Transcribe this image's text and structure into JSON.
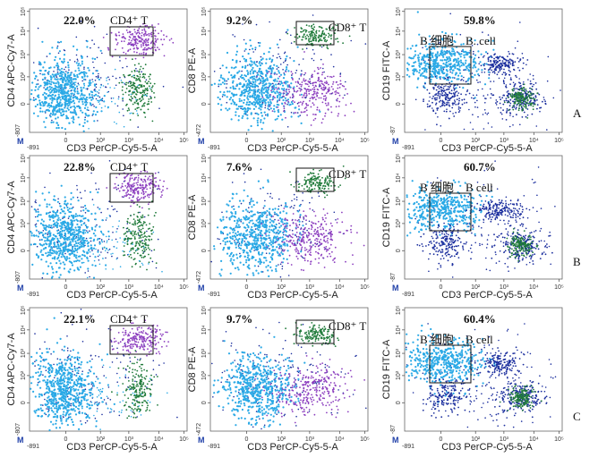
{
  "rows": [
    {
      "label": "A",
      "panels": [
        {
          "kind": "cd4",
          "x_axis": "CD3 PerCP-Cy5-5-A",
          "y_axis": "CD4 APC-Cy7-A",
          "x_min": "-891",
          "y_min": "-807",
          "percent": "22.0%",
          "gate": "CD4⁺ T",
          "gate_alt": ""
        },
        {
          "kind": "cd8",
          "x_axis": "CD3 PerCP-Cy5-5-A",
          "y_axis": "CD8 PE-A",
          "x_min": "-891",
          "y_min": "-472",
          "percent": "9.2%",
          "gate": "CD8⁺ T",
          "gate_alt": ""
        },
        {
          "kind": "cd19",
          "x_axis": "CD3 PerCP-Cy5-5-A",
          "y_axis": "CD19 FITC-A",
          "x_min": "-891",
          "y_min": "-87",
          "percent": "59.8%",
          "gate": "B 细胞",
          "gate_alt": "B. cell"
        }
      ]
    },
    {
      "label": "B",
      "panels": [
        {
          "kind": "cd4",
          "x_axis": "CD3 PerCP-Cy5-5-A",
          "y_axis": "CD4 APC-Cy7-A",
          "x_min": "-891",
          "y_min": "-807",
          "percent": "22.8%",
          "gate": "CD4⁺ T",
          "gate_alt": ""
        },
        {
          "kind": "cd8",
          "x_axis": "CD3 PerCP-Cy5-5-A",
          "y_axis": "CD8 PE-A",
          "x_min": "-891",
          "y_min": "-472",
          "percent": "7.6%",
          "gate": "CD8⁺ T",
          "gate_alt": ""
        },
        {
          "kind": "cd19",
          "x_axis": "CD3 PerCP-Cy5-5-A",
          "y_axis": "CD19 FITC-A",
          "x_min": "-891",
          "y_min": "-87",
          "percent": "60.7%",
          "gate": "B 细胞",
          "gate_alt": "B  cell"
        }
      ]
    },
    {
      "label": "C",
      "panels": [
        {
          "kind": "cd4",
          "x_axis": "CD3 PerCP-Cy5-5-A",
          "y_axis": "CD4 APC-Cy7-A",
          "x_min": "-891",
          "y_min": "-807",
          "percent": "22.1%",
          "gate": "CD4⁺ T",
          "gate_alt": ""
        },
        {
          "kind": "cd8",
          "x_axis": "CD3 PerCP-Cy5-5-A",
          "y_axis": "CD8 PE-A",
          "x_min": "-891",
          "y_min": "-472",
          "percent": "9.7%",
          "gate": "CD8⁺ T",
          "gate_alt": ""
        },
        {
          "kind": "cd19",
          "x_axis": "CD3 PerCP-Cy5-5-A",
          "y_axis": "CD19 FITC-A",
          "x_min": "-891",
          "y_min": "-87",
          "percent": "60.4%",
          "gate": "B 细胞",
          "gate_alt": "B  cell"
        }
      ]
    }
  ],
  "tick_labels": [
    "0",
    "10²",
    "10³",
    "10⁴",
    "10⁵"
  ],
  "logo_text": "M",
  "colors": {
    "light_blue": "#2aa9e6",
    "dark_blue": "#1c2f9e",
    "purple": "#8c3fbf",
    "green": "#1f7a3a"
  },
  "chart_data": {
    "type": "scatter",
    "scale": "log",
    "x_ticks": [
      "0",
      "10²",
      "10³",
      "10⁴",
      "10⁵"
    ],
    "y_ticks": [
      "0",
      "10²",
      "10³",
      "10⁴",
      "10⁵"
    ],
    "gated_percentages": [
      {
        "group": "A",
        "cd4_t": 22.0,
        "cd8_t": 9.2,
        "b_cell": 59.8
      },
      {
        "group": "B",
        "cd4_t": 22.8,
        "cd8_t": 7.6,
        "b_cell": 60.7
      },
      {
        "group": "C",
        "cd4_t": 22.1,
        "cd8_t": 9.7,
        "b_cell": 60.4
      }
    ]
  }
}
